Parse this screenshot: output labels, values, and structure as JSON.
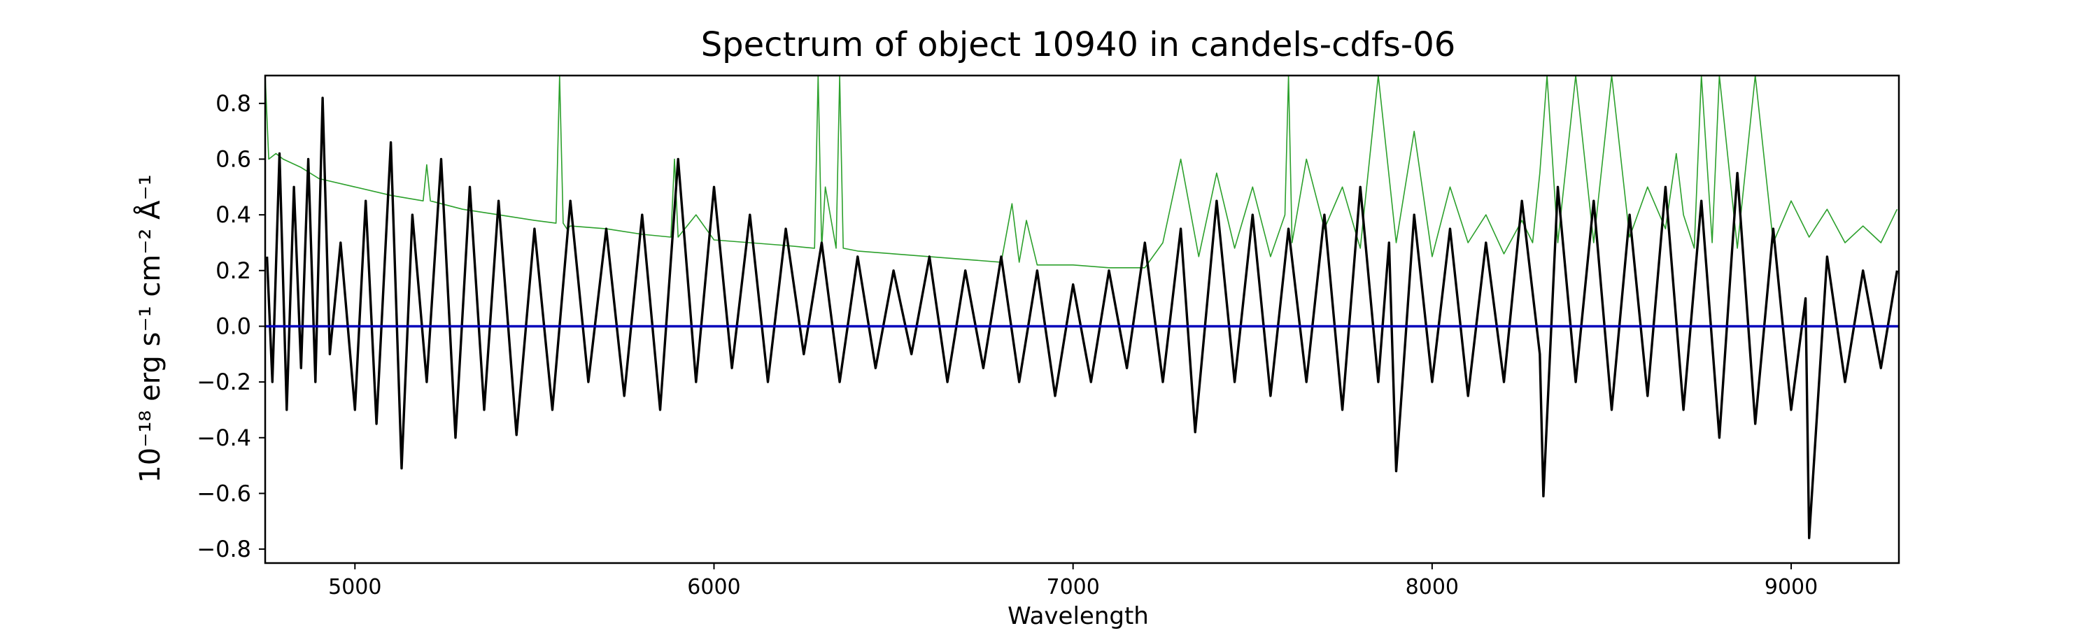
{
  "chart_data": {
    "type": "line",
    "title": "Spectrum of object 10940 in candels-cdfs-06",
    "xlabel": "Wavelength",
    "ylabel": "10⁻¹⁸ erg s⁻¹ cm⁻² Å⁻¹",
    "xlim": [
      4750,
      9300
    ],
    "ylim": [
      -0.85,
      0.9
    ],
    "x_ticks": [
      5000,
      6000,
      7000,
      8000,
      9000
    ],
    "y_ticks": [
      -0.8,
      -0.6,
      -0.4,
      -0.2,
      0.0,
      0.2,
      0.4,
      0.6,
      0.8
    ],
    "y_tick_labels": [
      "−0.8",
      "−0.6",
      "−0.4",
      "−0.2",
      "0.0",
      "0.2",
      "0.4",
      "0.6",
      "0.8"
    ],
    "grid": false,
    "legend": "none",
    "series": [
      {
        "color": "#000000",
        "role": "flux",
        "x": [
          4755,
          4770,
          4790,
          4810,
          4830,
          4850,
          4870,
          4890,
          4910,
          4930,
          4960,
          5000,
          5030,
          5060,
          5100,
          5130,
          5160,
          5200,
          5240,
          5280,
          5320,
          5360,
          5400,
          5450,
          5500,
          5550,
          5600,
          5650,
          5700,
          5750,
          5800,
          5850,
          5900,
          5950,
          6000,
          6050,
          6100,
          6150,
          6200,
          6250,
          6300,
          6350,
          6400,
          6450,
          6500,
          6550,
          6600,
          6650,
          6700,
          6750,
          6800,
          6850,
          6900,
          6950,
          7000,
          7050,
          7100,
          7150,
          7200,
          7250,
          7300,
          7340,
          7400,
          7450,
          7500,
          7550,
          7600,
          7650,
          7700,
          7750,
          7800,
          7850,
          7880,
          7900,
          7950,
          8000,
          8050,
          8100,
          8150,
          8200,
          8250,
          8300,
          8310,
          8350,
          8400,
          8450,
          8500,
          8550,
          8600,
          8650,
          8700,
          8750,
          8800,
          8850,
          8900,
          8950,
          9000,
          9040,
          9050,
          9100,
          9150,
          9200,
          9250,
          9295
        ],
        "y": [
          0.25,
          -0.2,
          0.62,
          -0.3,
          0.5,
          -0.15,
          0.6,
          -0.2,
          0.82,
          -0.1,
          0.3,
          -0.3,
          0.45,
          -0.35,
          0.66,
          -0.51,
          0.4,
          -0.2,
          0.6,
          -0.4,
          0.5,
          -0.3,
          0.45,
          -0.39,
          0.35,
          -0.3,
          0.45,
          -0.2,
          0.35,
          -0.25,
          0.4,
          -0.3,
          0.6,
          -0.2,
          0.5,
          -0.15,
          0.4,
          -0.2,
          0.35,
          -0.1,
          0.3,
          -0.2,
          0.25,
          -0.15,
          0.2,
          -0.1,
          0.25,
          -0.2,
          0.2,
          -0.15,
          0.25,
          -0.2,
          0.2,
          -0.25,
          0.15,
          -0.2,
          0.2,
          -0.15,
          0.3,
          -0.2,
          0.35,
          -0.38,
          0.45,
          -0.2,
          0.4,
          -0.25,
          0.35,
          -0.2,
          0.4,
          -0.3,
          0.5,
          -0.2,
          0.3,
          -0.52,
          0.4,
          -0.2,
          0.35,
          -0.25,
          0.3,
          -0.2,
          0.45,
          -0.1,
          -0.61,
          0.5,
          -0.2,
          0.45,
          -0.3,
          0.4,
          -0.25,
          0.5,
          -0.3,
          0.45,
          -0.4,
          0.55,
          -0.35,
          0.35,
          -0.3,
          0.1,
          -0.76,
          0.25,
          -0.2,
          0.2,
          -0.15,
          0.2
        ]
      },
      {
        "color": "#2ca02c",
        "role": "error",
        "x": [
          4750,
          4760,
          4780,
          4800,
          4850,
          4900,
          5000,
          5100,
          5190,
          5200,
          5210,
          5300,
          5400,
          5500,
          5560,
          5570,
          5580,
          5590,
          5600,
          5700,
          5800,
          5880,
          5890,
          5900,
          5950,
          6000,
          6100,
          6200,
          6280,
          6290,
          6300,
          6310,
          6340,
          6350,
          6360,
          6400,
          6500,
          6600,
          6700,
          6800,
          6830,
          6850,
          6870,
          6900,
          7000,
          7100,
          7200,
          7250,
          7300,
          7350,
          7400,
          7450,
          7500,
          7550,
          7590,
          7600,
          7610,
          7650,
          7700,
          7750,
          7800,
          7850,
          7900,
          7950,
          8000,
          8050,
          8100,
          8150,
          8200,
          8250,
          8280,
          8300,
          8320,
          8350,
          8400,
          8450,
          8500,
          8550,
          8600,
          8650,
          8680,
          8700,
          8730,
          8750,
          8780,
          8800,
          8850,
          8900,
          8950,
          9000,
          9050,
          9100,
          9150,
          9200,
          9250,
          9295
        ],
        "y": [
          0.9,
          0.6,
          0.62,
          0.6,
          0.57,
          0.53,
          0.5,
          0.47,
          0.45,
          0.58,
          0.45,
          0.42,
          0.4,
          0.38,
          0.37,
          0.9,
          0.37,
          0.35,
          0.36,
          0.35,
          0.33,
          0.32,
          0.6,
          0.32,
          0.4,
          0.31,
          0.3,
          0.29,
          0.28,
          0.9,
          0.28,
          0.5,
          0.28,
          0.9,
          0.28,
          0.27,
          0.26,
          0.25,
          0.24,
          0.23,
          0.44,
          0.23,
          0.38,
          0.22,
          0.22,
          0.21,
          0.21,
          0.3,
          0.6,
          0.25,
          0.55,
          0.28,
          0.5,
          0.25,
          0.4,
          0.9,
          0.3,
          0.6,
          0.35,
          0.5,
          0.28,
          0.9,
          0.3,
          0.7,
          0.25,
          0.5,
          0.3,
          0.4,
          0.26,
          0.38,
          0.3,
          0.55,
          0.9,
          0.3,
          0.9,
          0.3,
          0.9,
          0.32,
          0.5,
          0.35,
          0.62,
          0.4,
          0.28,
          0.9,
          0.3,
          0.9,
          0.28,
          0.9,
          0.3,
          0.45,
          0.32,
          0.42,
          0.3,
          0.36,
          0.3,
          0.42
        ]
      },
      {
        "color": "#0000bb",
        "role": "zero",
        "x": [
          4750,
          9300
        ],
        "y": [
          0.0,
          0.0
        ]
      }
    ]
  }
}
